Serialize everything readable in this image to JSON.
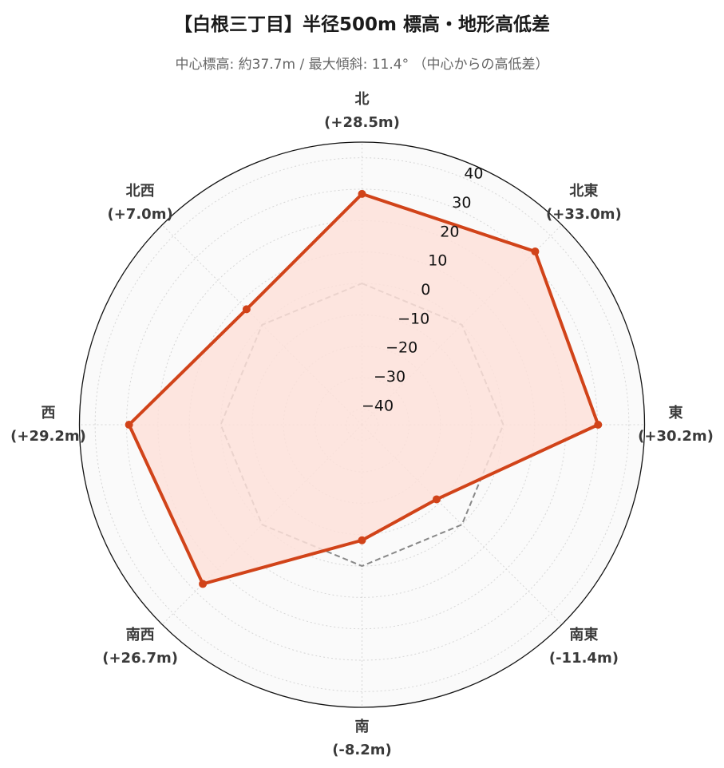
{
  "title": "【白根三丁目】半径500m 標高・地形高低差",
  "subtitle": "中心標高: 約37.7m / 最大傾斜: 11.4° （中心からの高低差）",
  "chart_data": {
    "type": "radar",
    "title": "【白根三丁目】半径500m 標高・地形高低差",
    "subtitle": "中心標高: 約37.7m / 最大傾斜: 11.4° （中心からの高低差）",
    "directions": [
      {
        "name": "北",
        "value_label": "(+28.5m)"
      },
      {
        "name": "北東",
        "value_label": "(+33.0m)"
      },
      {
        "name": "東",
        "value_label": "(+30.2m)"
      },
      {
        "name": "南東",
        "value_label": "(-11.4m)"
      },
      {
        "name": "南",
        "value_label": "(-8.2m)"
      },
      {
        "name": "南西",
        "value_label": "(+26.7m)"
      },
      {
        "name": "西",
        "value_label": "(+29.2m)"
      },
      {
        "name": "北西",
        "value_label": "(+7.0m)"
      }
    ],
    "series": [
      {
        "values": [
          28.5,
          33.0,
          30.2,
          -11.4,
          -8.2,
          26.7,
          29.2,
          7.0
        ],
        "color": "#d14319",
        "fill": "#fde0d9"
      },
      {
        "values": [
          0,
          0,
          0,
          0,
          0,
          0,
          0,
          0
        ],
        "color": "#888888",
        "style": "dashed"
      }
    ],
    "radial_range": [
      -45,
      45
    ],
    "radial_ticks": [
      40,
      30,
      20,
      10,
      0,
      -10,
      -20,
      -30,
      -40
    ],
    "grid": true
  }
}
